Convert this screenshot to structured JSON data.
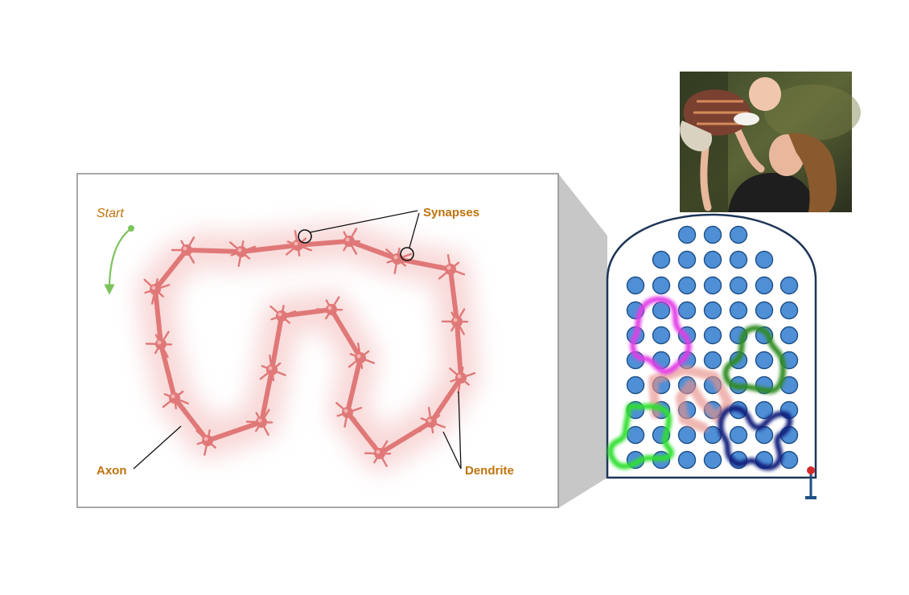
{
  "labels": {
    "start": "Start",
    "synapses": "Synapses",
    "axon": "Axon",
    "dendrite": "Dendrite"
  },
  "colors": {
    "label": "#c0720c",
    "start_arrow": "#7cc35a",
    "neuron": "#e07878",
    "neuron_glow": "#f6c9c9",
    "grid_dot_fill": "#4f8fd6",
    "grid_dot_stroke": "#1d4f86",
    "panel_outline": "#1d3557",
    "blob_magenta": "#e23ce6",
    "blob_green": "#2e8b22",
    "blob_lime": "#2ee02e",
    "blob_navy": "#0d1a7a",
    "callout_grey": "#b8b8b8"
  },
  "photo": {
    "icon": "mother-lifting-baby-photo"
  },
  "marker": {
    "icon": "pin-marker-icon"
  }
}
